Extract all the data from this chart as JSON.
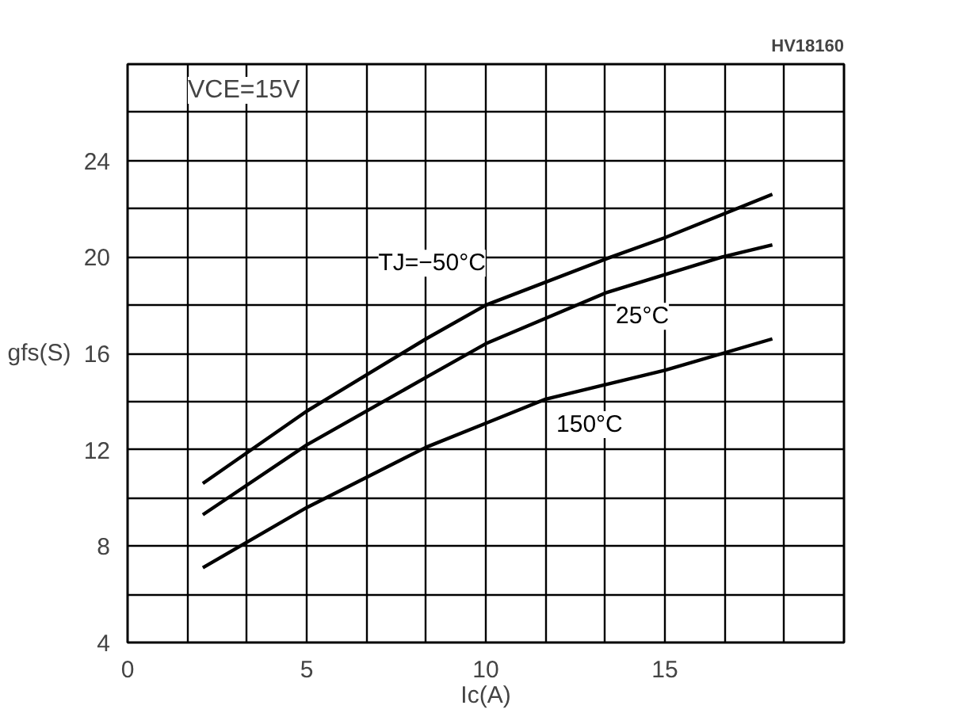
{
  "chart_data": {
    "type": "line",
    "xlabel": "Ic(A)",
    "ylabel": "gfs(S)",
    "xlim": [
      0,
      20
    ],
    "ylim": [
      4,
      28
    ],
    "xticks": [
      0,
      {
        "value": 1.667,
        "label": null
      },
      {
        "value": 3.333,
        "label": null
      },
      5,
      {
        "value": 6.667,
        "label": null
      },
      {
        "value": 8.333,
        "label": null
      },
      10,
      {
        "value": 11.667,
        "label": null
      },
      {
        "value": 13.333,
        "label": null
      },
      15,
      {
        "value": 16.667,
        "label": null
      },
      {
        "value": 18.333,
        "label": null
      },
      {
        "value": 20,
        "label": null
      }
    ],
    "yticks": [
      4,
      {
        "value": 6,
        "label": null
      },
      8,
      {
        "value": 10,
        "label": null
      },
      12,
      {
        "value": 14,
        "label": null
      },
      16,
      {
        "value": 18,
        "label": null
      },
      20,
      {
        "value": 22,
        "label": null
      },
      24,
      {
        "value": 26,
        "label": null
      },
      {
        "value": 28,
        "label": null
      }
    ],
    "grid": true,
    "line_style": "solid",
    "marker": "none",
    "series": [
      {
        "name": "TJ=−50°C",
        "color": "#000000",
        "x": [
          2.1,
          5,
          8.33,
          10,
          13.5,
          15,
          18
        ],
        "values": [
          10.6,
          13.6,
          16.6,
          18.0,
          20.0,
          20.8,
          22.6
        ]
      },
      {
        "name": "25°C",
        "color": "#000000",
        "x": [
          2.1,
          5,
          8.33,
          10,
          13.33,
          16.6,
          18
        ],
        "values": [
          9.3,
          12.2,
          15.0,
          16.4,
          18.5,
          20.0,
          20.5
        ]
      },
      {
        "name": "150°C",
        "color": "#000000",
        "x": [
          2.1,
          5,
          8.33,
          10,
          11.67,
          15,
          18
        ],
        "values": [
          7.1,
          9.6,
          12.1,
          13.1,
          14.1,
          15.3,
          16.6
        ]
      }
    ],
    "annotations": [
      "VCE=15V",
      "HV18160"
    ]
  }
}
